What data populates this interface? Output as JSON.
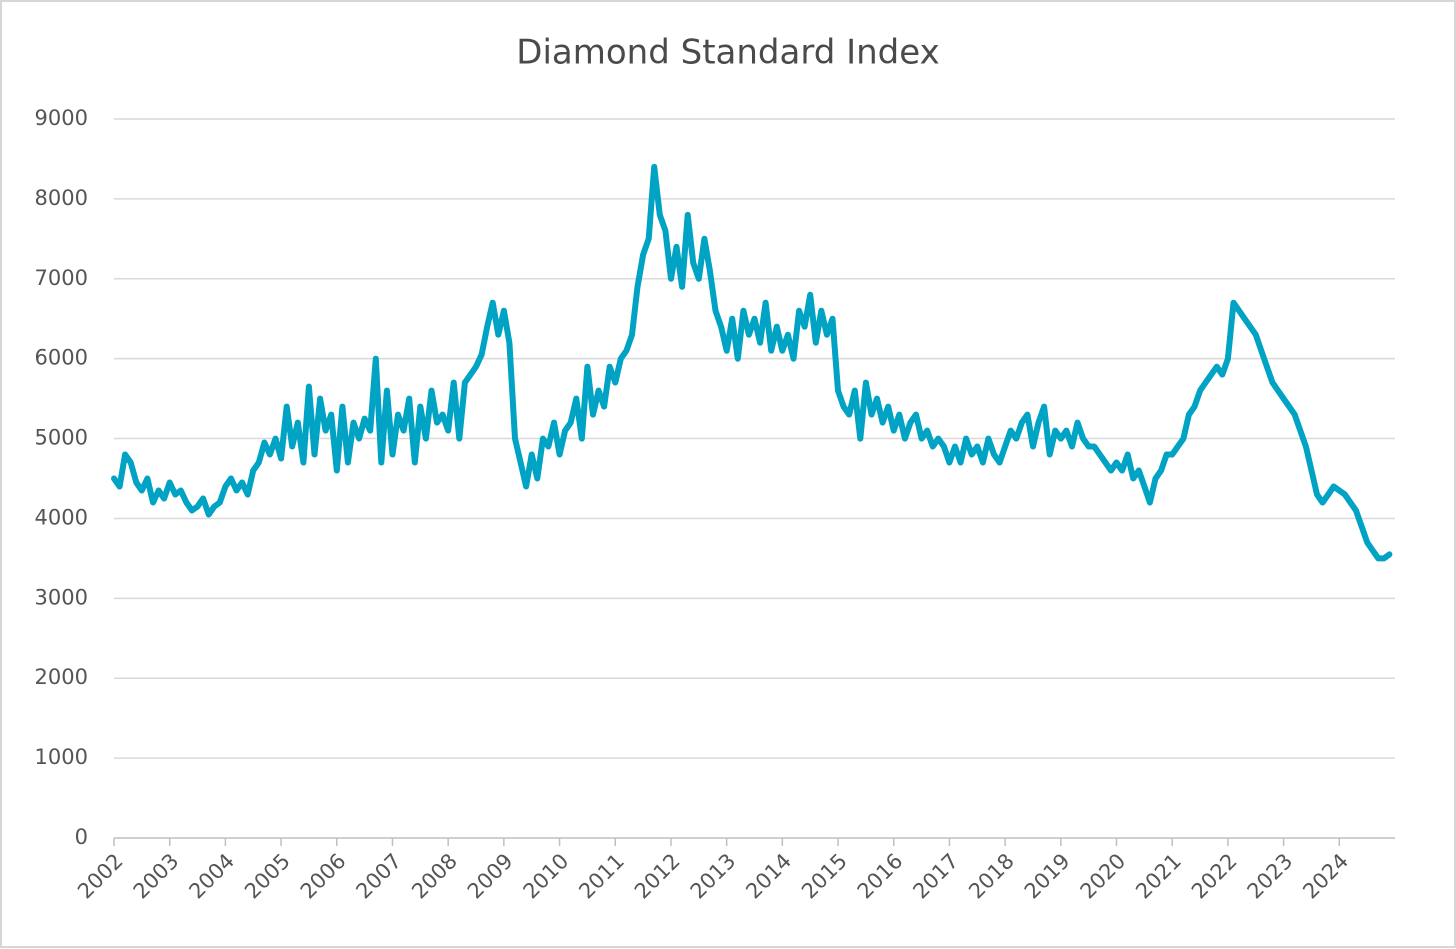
{
  "chart_data": {
    "type": "line",
    "title": "Diamond Standard Index",
    "x": [
      2002.0,
      2002.1,
      2002.2,
      2002.3,
      2002.4,
      2002.5,
      2002.6,
      2002.7,
      2002.8,
      2002.9,
      2003.0,
      2003.1,
      2003.2,
      2003.3,
      2003.4,
      2003.5,
      2003.6,
      2003.7,
      2003.8,
      2003.9,
      2004.0,
      2004.1,
      2004.2,
      2004.3,
      2004.4,
      2004.5,
      2004.6,
      2004.7,
      2004.8,
      2004.9,
      2005.0,
      2005.1,
      2005.2,
      2005.3,
      2005.4,
      2005.5,
      2005.6,
      2005.7,
      2005.8,
      2005.9,
      2006.0,
      2006.1,
      2006.2,
      2006.3,
      2006.4,
      2006.5,
      2006.6,
      2006.7,
      2006.8,
      2006.9,
      2007.0,
      2007.1,
      2007.2,
      2007.3,
      2007.4,
      2007.5,
      2007.6,
      2007.7,
      2007.8,
      2007.9,
      2008.0,
      2008.1,
      2008.2,
      2008.3,
      2008.4,
      2008.5,
      2008.6,
      2008.7,
      2008.8,
      2008.9,
      2009.0,
      2009.1,
      2009.2,
      2009.3,
      2009.4,
      2009.5,
      2009.6,
      2009.7,
      2009.8,
      2009.9,
      2010.0,
      2010.1,
      2010.2,
      2010.3,
      2010.4,
      2010.5,
      2010.6,
      2010.7,
      2010.8,
      2010.9,
      2011.0,
      2011.1,
      2011.2,
      2011.3,
      2011.4,
      2011.5,
      2011.6,
      2011.7,
      2011.8,
      2011.9,
      2012.0,
      2012.1,
      2012.2,
      2012.3,
      2012.4,
      2012.5,
      2012.6,
      2012.7,
      2012.8,
      2012.9,
      2013.0,
      2013.1,
      2013.2,
      2013.3,
      2013.4,
      2013.5,
      2013.6,
      2013.7,
      2013.8,
      2013.9,
      2014.0,
      2014.1,
      2014.2,
      2014.3,
      2014.4,
      2014.5,
      2014.6,
      2014.7,
      2014.8,
      2014.9,
      2015.0,
      2015.1,
      2015.2,
      2015.3,
      2015.4,
      2015.5,
      2015.6,
      2015.7,
      2015.8,
      2015.9,
      2016.0,
      2016.1,
      2016.2,
      2016.3,
      2016.4,
      2016.5,
      2016.6,
      2016.7,
      2016.8,
      2016.9,
      2017.0,
      2017.1,
      2017.2,
      2017.3,
      2017.4,
      2017.5,
      2017.6,
      2017.7,
      2017.8,
      2017.9,
      2018.0,
      2018.1,
      2018.2,
      2018.3,
      2018.4,
      2018.5,
      2018.6,
      2018.7,
      2018.8,
      2018.9,
      2019.0,
      2019.1,
      2019.2,
      2019.3,
      2019.4,
      2019.5,
      2019.6,
      2019.7,
      2019.8,
      2019.9,
      2020.0,
      2020.1,
      2020.2,
      2020.3,
      2020.4,
      2020.5,
      2020.6,
      2020.7,
      2020.8,
      2020.9,
      2021.0,
      2021.1,
      2021.2,
      2021.3,
      2021.4,
      2021.5,
      2021.6,
      2021.7,
      2021.8,
      2021.9,
      2022.0,
      2022.1,
      2022.2,
      2022.3,
      2022.4,
      2022.5,
      2022.6,
      2022.7,
      2022.8,
      2022.9,
      2023.0,
      2023.1,
      2023.2,
      2023.3,
      2023.4,
      2023.5,
      2023.6,
      2023.7,
      2023.8,
      2023.9,
      2024.0,
      2024.1,
      2024.2,
      2024.3,
      2024.4,
      2024.5,
      2024.6,
      2024.7,
      2024.8,
      2024.9
    ],
    "series": [
      {
        "name": "Diamond Standard Index",
        "color": "#00a3c4",
        "values": [
          4500,
          4400,
          4800,
          4700,
          4450,
          4350,
          4500,
          4200,
          4350,
          4250,
          4450,
          4300,
          4350,
          4200,
          4100,
          4150,
          4250,
          4050,
          4150,
          4200,
          4400,
          4500,
          4350,
          4450,
          4300,
          4600,
          4700,
          4950,
          4800,
          5000,
          4750,
          5400,
          4900,
          5200,
          4700,
          5650,
          4800,
          5500,
          5100,
          5300,
          4600,
          5400,
          4700,
          5200,
          5000,
          5250,
          5100,
          6000,
          4700,
          5600,
          4800,
          5300,
          5100,
          5500,
          4700,
          5400,
          5000,
          5600,
          5200,
          5300,
          5100,
          5700,
          5000,
          5700,
          5800,
          5900,
          6050,
          6400,
          6700,
          6300,
          6600,
          6200,
          5000,
          4700,
          4400,
          4800,
          4500,
          5000,
          4900,
          5200,
          4800,
          5100,
          5200,
          5500,
          5000,
          5900,
          5300,
          5600,
          5400,
          5900,
          5700,
          6000,
          6100,
          6300,
          6900,
          7300,
          7500,
          8400,
          7800,
          7600,
          7000,
          7400,
          6900,
          7800,
          7200,
          7000,
          7500,
          7100,
          6600,
          6400,
          6100,
          6500,
          6000,
          6600,
          6300,
          6500,
          6200,
          6700,
          6100,
          6400,
          6100,
          6300,
          6000,
          6600,
          6400,
          6800,
          6200,
          6600,
          6300,
          6500,
          5600,
          5400,
          5300,
          5600,
          5000,
          5700,
          5300,
          5500,
          5200,
          5400,
          5100,
          5300,
          5000,
          5200,
          5300,
          5000,
          5100,
          4900,
          5000,
          4900,
          4700,
          4900,
          4700,
          5000,
          4800,
          4900,
          4700,
          5000,
          4800,
          4700,
          4900,
          5100,
          5000,
          5200,
          5300,
          4900,
          5200,
          5400,
          4800,
          5100,
          5000,
          5100,
          4900,
          5200,
          5000,
          4900,
          4900,
          4800,
          4700,
          4600,
          4700,
          4600,
          4800,
          4500,
          4600,
          4400,
          4200,
          4500,
          4600,
          4800,
          4800,
          4900,
          5000,
          5300,
          5400,
          5600,
          5700,
          5800,
          5900,
          5800,
          6000,
          6700,
          6600,
          6500,
          6400,
          6300,
          6100,
          5900,
          5700,
          5600,
          5500,
          5400,
          5300,
          5100,
          4900,
          4600,
          4300,
          4200,
          4300,
          4400,
          4350,
          4300,
          4200,
          4100,
          3900,
          3700,
          3600,
          3500,
          3500,
          3550
        ]
      }
    ],
    "xlim": [
      2002,
      2025
    ],
    "xticks": [
      2002,
      2003,
      2004,
      2005,
      2006,
      2007,
      2008,
      2009,
      2010,
      2011,
      2012,
      2013,
      2014,
      2015,
      2016,
      2017,
      2018,
      2019,
      2020,
      2021,
      2022,
      2023,
      2024
    ],
    "ylim": [
      0,
      9000
    ],
    "yticks": [
      0,
      1000,
      2000,
      3000,
      4000,
      5000,
      6000,
      7000,
      8000,
      9000
    ],
    "grid": true
  }
}
